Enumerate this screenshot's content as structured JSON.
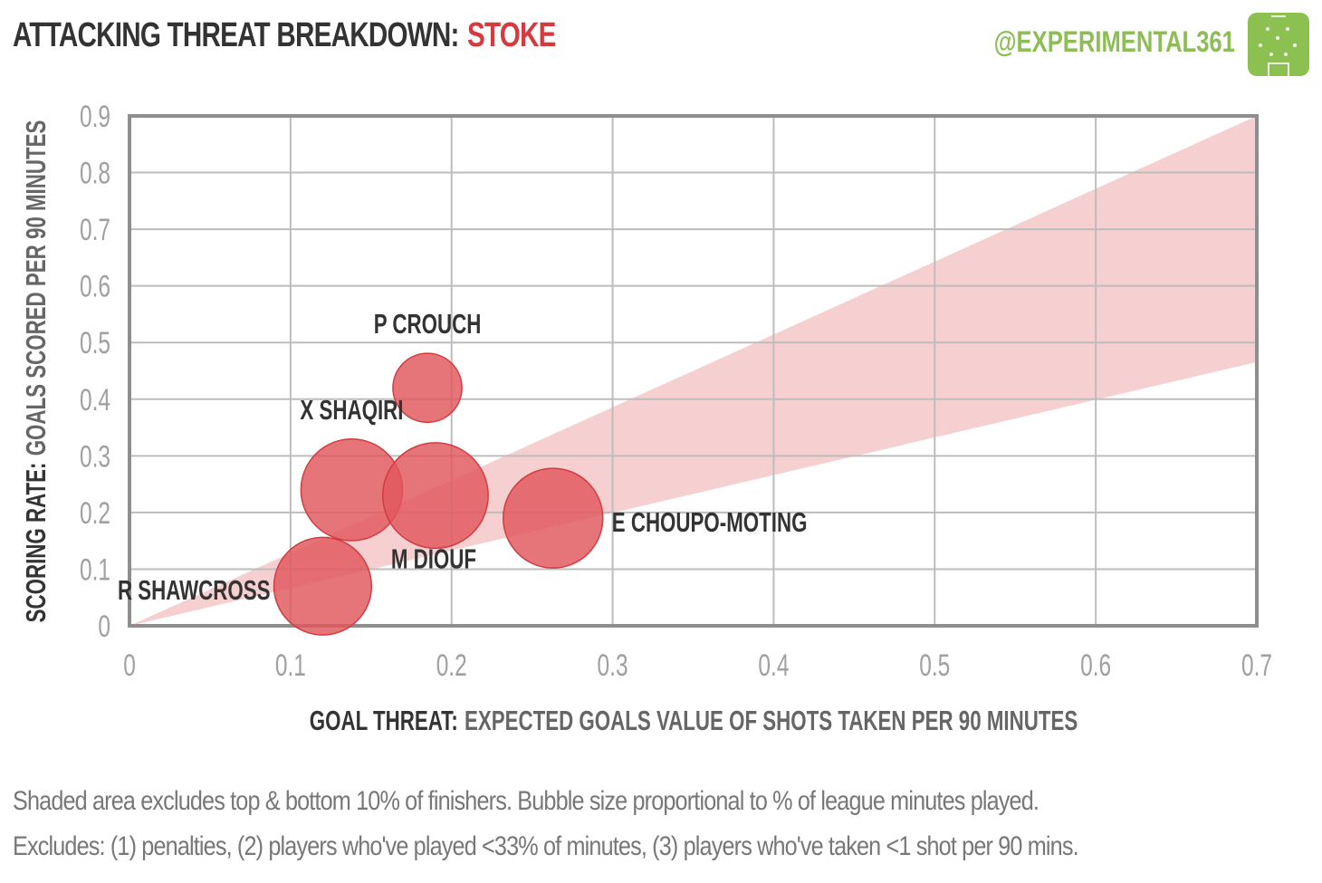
{
  "header": {
    "title": "ATTACKING THREAT BREAKDOWN:",
    "team": "STOKE",
    "handle": "@EXPERIMENTAL361",
    "logo_icon": "pitch-logo-icon"
  },
  "colors": {
    "accent": "#d63a3e",
    "bubble_fill": "#e0575b",
    "band_fill": "#f6cfd0",
    "brand_green": "#8cc152"
  },
  "chart_data": {
    "type": "scatter",
    "xlabel_bold": "GOAL THREAT:",
    "xlabel_rest": "EXPECTED GOALS VALUE OF SHOTS TAKEN PER 90 MINUTES",
    "ylabel_bold": "SCORING RATE:",
    "ylabel_rest": "GOALS SCORED PER 90 MINUTES",
    "xlim": [
      0,
      0.7
    ],
    "ylim": [
      0,
      0.9
    ],
    "xticks": [
      "0",
      "0.1",
      "0.2",
      "0.3",
      "0.4",
      "0.5",
      "0.6",
      "0.7"
    ],
    "yticks": [
      "0",
      "0.1",
      "0.2",
      "0.3",
      "0.4",
      "0.5",
      "0.6",
      "0.7",
      "0.8",
      "0.9"
    ],
    "grid": true,
    "shaded_band": {
      "lower_slope": 0.665,
      "upper_slope": 1.286
    },
    "points": [
      {
        "label": "P CROUCH",
        "x": 0.185,
        "y": 0.42,
        "minutes_share": 0.12,
        "label_pos": "above"
      },
      {
        "label": "X SHAQIRI",
        "x": 0.138,
        "y": 0.24,
        "minutes_share": 0.26,
        "label_pos": "above"
      },
      {
        "label": "M DIOUF",
        "x": 0.19,
        "y": 0.23,
        "minutes_share": 0.28,
        "label_pos": "below"
      },
      {
        "label": "E CHOUPO-MOTING",
        "x": 0.263,
        "y": 0.19,
        "minutes_share": 0.25,
        "label_pos": "right"
      },
      {
        "label": "R SHAWCROSS",
        "x": 0.12,
        "y": 0.07,
        "minutes_share": 0.24,
        "label_pos": "left"
      }
    ]
  },
  "footnotes": {
    "line1": "Shaded area excludes top & bottom 10% of finishers. Bubble size proportional to % of league minutes played.",
    "line2": "Excludes: (1) penalties, (2) players who've played <33% of minutes, (3) players who've taken <1 shot per 90 mins."
  }
}
